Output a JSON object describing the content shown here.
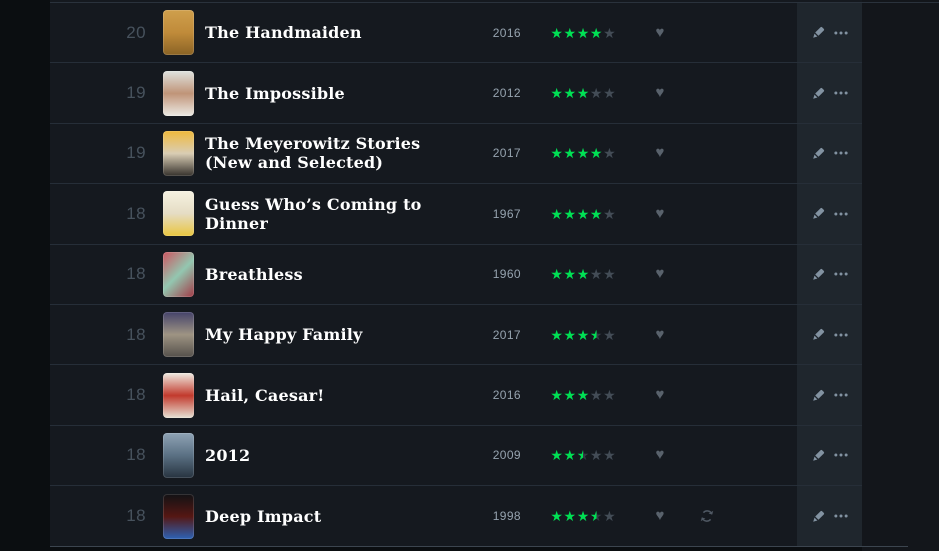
{
  "theme": {
    "accent_green": "#00e054",
    "page_bg": "#0b0e11",
    "row_bg": "#15191f",
    "actions_panel_bg": "#1f262d",
    "divider": "#262e38",
    "title_color": "#ffffff",
    "year_color": "#96a3af",
    "rank_color": "#47525d",
    "empty_star_color": "#434c56",
    "heart_color": "#59626c",
    "action_icon_color": "#8292a1"
  },
  "list": {
    "icons": {
      "star": "★",
      "heart": "♥",
      "pencil": "pencil-icon",
      "more": "ellipsis-icon",
      "rewatch": "sync-icon"
    },
    "rating_scale": 5,
    "rows": [
      {
        "rank": "20",
        "title": "The Handmaiden",
        "year": "2016",
        "rating": 4,
        "liked": true,
        "rewatch": false,
        "poster_colors": [
          "#cf9f4c",
          "#c08b3a",
          "#8a6325"
        ],
        "poster_angle": 180
      },
      {
        "rank": "19",
        "title": "The Impossible",
        "year": "2012",
        "rating": 3,
        "liked": true,
        "rewatch": false,
        "poster_colors": [
          "#dfe3e0",
          "#c09478",
          "#eceae4"
        ],
        "poster_angle": 180
      },
      {
        "rank": "19",
        "title": "The Meyerowitz Stories (New and Selected)",
        "year": "2017",
        "rating": 4,
        "liked": true,
        "rewatch": false,
        "poster_colors": [
          "#efb93c",
          "#d9cdb4",
          "#35312c"
        ],
        "poster_angle": 180
      },
      {
        "rank": "18",
        "title": "Guess Who’s Coming to Dinner",
        "year": "1967",
        "rating": 4,
        "liked": true,
        "rewatch": false,
        "poster_colors": [
          "#f6f2e2",
          "#e5dcc4",
          "#e9c63f"
        ],
        "poster_angle": 180
      },
      {
        "rank": "18",
        "title": "Breathless",
        "year": "1960",
        "rating": 3,
        "liked": true,
        "rewatch": false,
        "poster_colors": [
          "#cc5560",
          "#93c7b0",
          "#a23a46"
        ],
        "poster_angle": 135
      },
      {
        "rank": "18",
        "title": "My Happy Family",
        "year": "2017",
        "rating": 3.5,
        "liked": true,
        "rewatch": false,
        "poster_colors": [
          "#45436a",
          "#9e9483",
          "#55504b"
        ],
        "poster_angle": 180
      },
      {
        "rank": "18",
        "title": "Hail, Caesar!",
        "year": "2016",
        "rating": 3,
        "liked": true,
        "rewatch": false,
        "poster_colors": [
          "#efece3",
          "#c23a2d",
          "#e6e1d4"
        ],
        "poster_angle": 180
      },
      {
        "rank": "18",
        "title": "2012",
        "year": "2009",
        "rating": 2.5,
        "liked": true,
        "rewatch": false,
        "poster_colors": [
          "#8fa3b5",
          "#5a7083",
          "#27333f"
        ],
        "poster_angle": 180
      },
      {
        "rank": "18",
        "title": "Deep Impact",
        "year": "1998",
        "rating": 3.5,
        "liked": true,
        "rewatch": true,
        "poster_colors": [
          "#121215",
          "#551713",
          "#2d62b5"
        ],
        "poster_angle": 180
      }
    ]
  }
}
